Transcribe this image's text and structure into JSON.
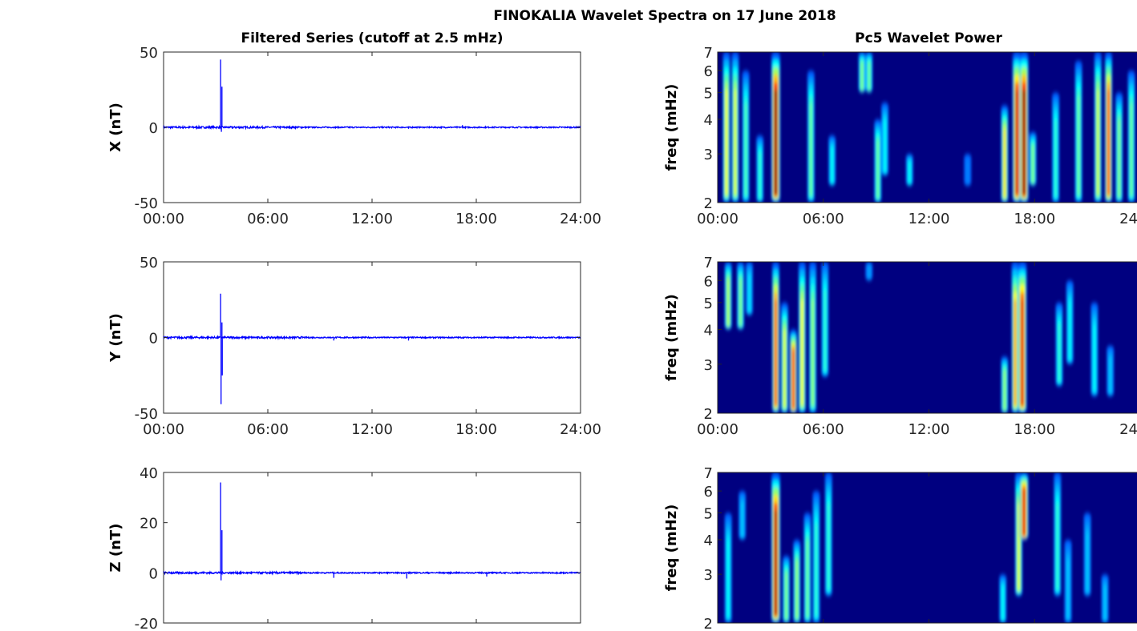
{
  "chart_data": {
    "type": "line+heatmap",
    "title": "FINOKALIA Wavelet Spectra on 17 June 2018",
    "left_title": "Filtered Series (cutoff at 2.5 mHz)",
    "right_title": "Pc5 Wavelet Power",
    "x_ticks": [
      "00:00",
      "06:00",
      "12:00",
      "18:00",
      "24:00"
    ],
    "x_range_hours": [
      0,
      24
    ],
    "line_color": "#0000ff",
    "freq_ticks": [
      2,
      3,
      4,
      5,
      6,
      7
    ],
    "freq_label": "freq (mHz)",
    "freq_range": [
      2,
      7
    ],
    "freq_scale": "log",
    "colormap": "jet",
    "panels": [
      {
        "component": "X",
        "ylabel": "X (nT)",
        "ylim": [
          -50,
          50
        ],
        "yticks": [
          -50,
          0,
          50
        ],
        "show_xticklabels": true,
        "noise_nT": 0.5,
        "spikes": [
          {
            "t": 3.28,
            "v": 45
          },
          {
            "t": 3.33,
            "v": -3
          },
          {
            "t": 3.36,
            "v": 27
          },
          {
            "t": 17.2,
            "v": 1.5
          },
          {
            "t": 14.1,
            "v": -1
          }
        ],
        "wavelet_events": [
          {
            "t": 0.5,
            "f": [
              2,
              7
            ],
            "p": 0.62
          },
          {
            "t": 1.0,
            "f": [
              2,
              7
            ],
            "p": 0.6
          },
          {
            "t": 1.6,
            "f": [
              2,
              6
            ],
            "p": 0.45
          },
          {
            "t": 2.4,
            "f": [
              2,
              3.5
            ],
            "p": 0.42
          },
          {
            "t": 3.3,
            "f": [
              2,
              7
            ],
            "p": 1.0
          },
          {
            "t": 5.3,
            "f": [
              2,
              6
            ],
            "p": 0.48
          },
          {
            "t": 6.5,
            "f": [
              2.3,
              3.5
            ],
            "p": 0.38
          },
          {
            "t": 8.2,
            "f": [
              5,
              7
            ],
            "p": 0.5
          },
          {
            "t": 8.6,
            "f": [
              5,
              7
            ],
            "p": 0.48
          },
          {
            "t": 9.1,
            "f": [
              2,
              4
            ],
            "p": 0.48
          },
          {
            "t": 9.5,
            "f": [
              2.5,
              4.6
            ],
            "p": 0.38
          },
          {
            "t": 10.9,
            "f": [
              2.3,
              3
            ],
            "p": 0.38
          },
          {
            "t": 14.2,
            "f": [
              2.3,
              3
            ],
            "p": 0.25
          },
          {
            "t": 16.3,
            "f": [
              2,
              4.5
            ],
            "p": 0.65
          },
          {
            "t": 17.0,
            "f": [
              2,
              7
            ],
            "p": 0.92
          },
          {
            "t": 17.4,
            "f": [
              2,
              7
            ],
            "p": 1.0
          },
          {
            "t": 17.9,
            "f": [
              2.3,
              3.6
            ],
            "p": 0.5
          },
          {
            "t": 19.2,
            "f": [
              2,
              5
            ],
            "p": 0.42
          },
          {
            "t": 20.5,
            "f": [
              2,
              6.5
            ],
            "p": 0.48
          },
          {
            "t": 21.6,
            "f": [
              2,
              7
            ],
            "p": 0.58
          },
          {
            "t": 22.2,
            "f": [
              2,
              7
            ],
            "p": 0.82
          },
          {
            "t": 22.8,
            "f": [
              2,
              5
            ],
            "p": 0.5
          },
          {
            "t": 23.5,
            "f": [
              2,
              6
            ],
            "p": 0.48
          }
        ]
      },
      {
        "component": "Y",
        "ylabel": "Y (nT)",
        "ylim": [
          -50,
          50
        ],
        "yticks": [
          -50,
          0,
          50
        ],
        "show_xticklabels": true,
        "noise_nT": 0.5,
        "spikes": [
          {
            "t": 3.28,
            "v": 29
          },
          {
            "t": 3.31,
            "v": -44
          },
          {
            "t": 3.36,
            "v": 10
          },
          {
            "t": 3.38,
            "v": -25
          },
          {
            "t": 9.8,
            "v": -2
          },
          {
            "t": 14.1,
            "v": -2
          }
        ],
        "wavelet_events": [
          {
            "t": 0.6,
            "f": [
              4,
              7
            ],
            "p": 0.55
          },
          {
            "t": 1.3,
            "f": [
              4,
              7
            ],
            "p": 0.5
          },
          {
            "t": 1.8,
            "f": [
              4.5,
              7
            ],
            "p": 0.35
          },
          {
            "t": 3.3,
            "f": [
              2,
              7
            ],
            "p": 0.82
          },
          {
            "t": 3.8,
            "f": [
              2,
              5
            ],
            "p": 0.6
          },
          {
            "t": 4.3,
            "f": [
              2,
              4
            ],
            "p": 0.85
          },
          {
            "t": 4.8,
            "f": [
              2,
              7
            ],
            "p": 0.62
          },
          {
            "t": 5.4,
            "f": [
              2,
              7
            ],
            "p": 0.52
          },
          {
            "t": 6.1,
            "f": [
              2.7,
              7
            ],
            "p": 0.42
          },
          {
            "t": 8.6,
            "f": [
              6,
              7
            ],
            "p": 0.28
          },
          {
            "t": 16.3,
            "f": [
              2,
              3.2
            ],
            "p": 0.52
          },
          {
            "t": 16.9,
            "f": [
              2,
              7
            ],
            "p": 0.72
          },
          {
            "t": 17.3,
            "f": [
              2,
              7
            ],
            "p": 0.9
          },
          {
            "t": 19.4,
            "f": [
              2.5,
              5
            ],
            "p": 0.42
          },
          {
            "t": 20.0,
            "f": [
              3,
              6
            ],
            "p": 0.38
          },
          {
            "t": 21.4,
            "f": [
              2.3,
              5
            ],
            "p": 0.38
          },
          {
            "t": 22.3,
            "f": [
              2.3,
              3.5
            ],
            "p": 0.32
          }
        ]
      },
      {
        "component": "Z",
        "ylabel": "Z (nT)",
        "ylim": [
          -20,
          40
        ],
        "yticks": [
          -20,
          0,
          20,
          40
        ],
        "show_xticklabels": false,
        "noise_nT": 0.3,
        "spikes": [
          {
            "t": 3.28,
            "v": 36
          },
          {
            "t": 3.31,
            "v": -3
          },
          {
            "t": 3.36,
            "v": 17
          },
          {
            "t": 9.8,
            "v": -2
          },
          {
            "t": 14.0,
            "v": -2.3
          },
          {
            "t": 18.6,
            "v": -1.5
          }
        ],
        "wavelet_events": [
          {
            "t": 0.6,
            "f": [
              2,
              5
            ],
            "p": 0.38
          },
          {
            "t": 1.4,
            "f": [
              4,
              6
            ],
            "p": 0.32
          },
          {
            "t": 3.3,
            "f": [
              2,
              7
            ],
            "p": 0.95
          },
          {
            "t": 3.9,
            "f": [
              2,
              3.5
            ],
            "p": 0.5
          },
          {
            "t": 4.5,
            "f": [
              2,
              4
            ],
            "p": 0.52
          },
          {
            "t": 5.1,
            "f": [
              2,
              5
            ],
            "p": 0.48
          },
          {
            "t": 5.6,
            "f": [
              2,
              6
            ],
            "p": 0.42
          },
          {
            "t": 6.3,
            "f": [
              2.5,
              7
            ],
            "p": 0.42
          },
          {
            "t": 16.2,
            "f": [
              2,
              3
            ],
            "p": 0.38
          },
          {
            "t": 17.1,
            "f": [
              2.5,
              7
            ],
            "p": 0.6
          },
          {
            "t": 17.4,
            "f": [
              4,
              7
            ],
            "p": 0.9
          },
          {
            "t": 19.3,
            "f": [
              2.5,
              7
            ],
            "p": 0.42
          },
          {
            "t": 19.9,
            "f": [
              2,
              4
            ],
            "p": 0.32
          },
          {
            "t": 21.0,
            "f": [
              2.5,
              5
            ],
            "p": 0.32
          },
          {
            "t": 22.0,
            "f": [
              2,
              3
            ],
            "p": 0.32
          }
        ]
      }
    ]
  }
}
